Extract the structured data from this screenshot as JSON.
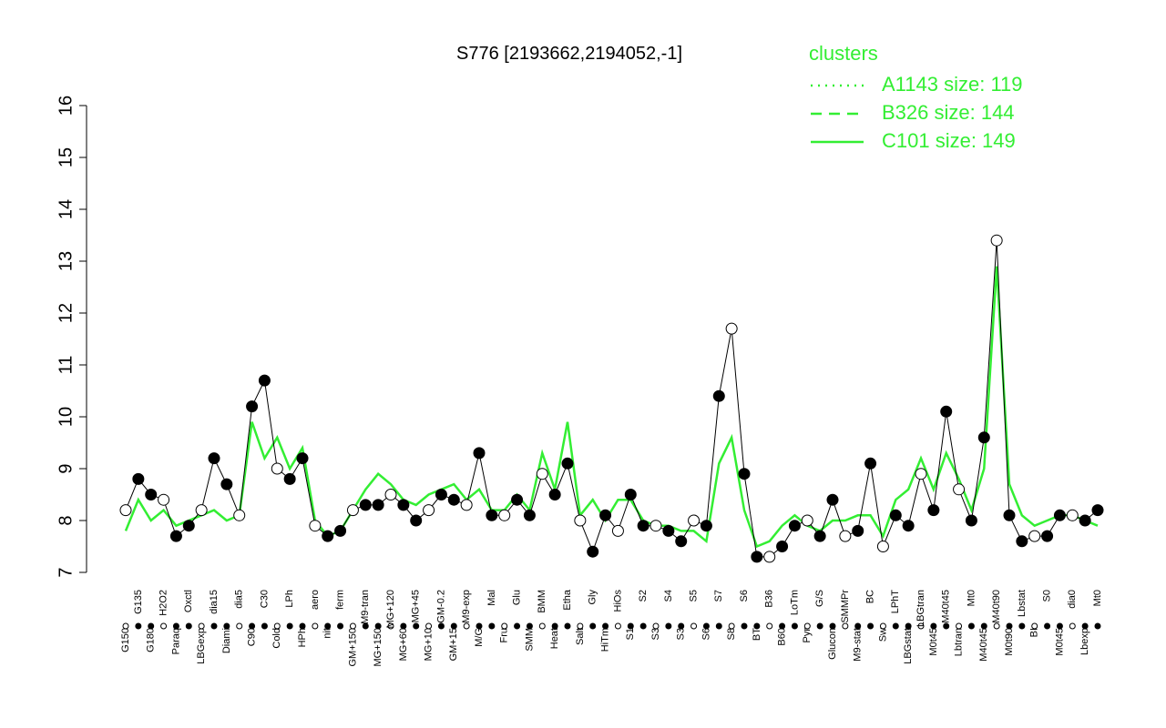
{
  "chart_data": {
    "type": "line",
    "title": "S776 [2193662,2194052,-1]",
    "legend_title": "clusters",
    "legend": "top-right",
    "categories": [
      "G150",
      "G135",
      "G180",
      "H2O2",
      "Paraq",
      "Oxctl",
      "LBGexp",
      "dia15",
      "Diami",
      "dia5",
      "C90",
      "C30",
      "Cold",
      "LPh",
      "HPh",
      "aero",
      "nit",
      "ferm",
      "GM+150",
      "M9-tran",
      "MG+150",
      "MG+120",
      "MG+60",
      "MG+45",
      "MG+10",
      "GM-0.2",
      "GM+15",
      "M9-exp",
      "M/G",
      "Mal",
      "Fru",
      "Glu",
      "SMM",
      "BMM",
      "Heat",
      "Etha",
      "Salt",
      "Gly",
      "HiTm",
      "HiOs",
      "S1",
      "S2",
      "S3",
      "S4",
      "S3",
      "S5",
      "S6",
      "S7",
      "S8",
      "S6",
      "BT",
      "B36",
      "B60",
      "LoTm",
      "Pyr",
      "G/S",
      "Glucon",
      "SMMPr",
      "M9-stat",
      "BC",
      "Sw",
      "LPhT",
      "LBGstat",
      "LBGtran",
      "M0t45",
      "M40t45",
      "Lbtran",
      "Mt0",
      "M40t45",
      "M40t90",
      "M0t90",
      "Lbstat",
      "BI",
      "S0",
      "M0t45",
      "dia0",
      "Lbexp",
      "Mt0"
    ],
    "points": [
      8.2,
      8.8,
      8.5,
      8.4,
      7.7,
      7.9,
      8.2,
      9.2,
      8.7,
      8.1,
      10.2,
      10.7,
      9.0,
      8.8,
      9.2,
      7.9,
      7.7,
      7.8,
      8.2,
      8.3,
      8.3,
      8.5,
      8.3,
      8.0,
      8.2,
      8.5,
      8.4,
      8.3,
      9.3,
      8.1,
      8.1,
      8.4,
      8.1,
      8.9,
      8.5,
      9.1,
      8.0,
      7.4,
      8.1,
      7.8,
      8.5,
      7.9,
      7.9,
      7.8,
      7.6,
      8.0,
      7.9,
      10.4,
      11.7,
      8.9,
      7.3,
      7.3,
      7.5,
      7.9,
      8.0,
      7.7,
      8.4,
      7.7,
      7.8,
      9.1,
      7.5,
      8.1,
      7.9,
      8.9,
      8.2,
      10.1,
      8.6,
      8.0,
      9.6,
      13.4,
      8.1,
      7.6,
      7.7,
      7.7,
      8.1,
      8.1,
      8.0,
      8.2
    ],
    "series": [
      {
        "name": "A1143 size: 119",
        "color": "#33ee33",
        "dash": "dotted"
      },
      {
        "name": "B326 size: 144",
        "color": "#33ee33",
        "dash": "dashed"
      },
      {
        "name": "C101 size: 149",
        "color": "#33ee33",
        "dash": "solid",
        "values": [
          7.8,
          8.4,
          8.0,
          8.2,
          7.9,
          8.0,
          8.1,
          8.2,
          8.0,
          8.1,
          9.9,
          9.2,
          9.6,
          9.0,
          9.4,
          8.0,
          7.7,
          7.8,
          8.2,
          8.6,
          8.9,
          8.7,
          8.4,
          8.3,
          8.5,
          8.6,
          8.7,
          8.4,
          8.6,
          8.2,
          8.2,
          8.5,
          8.2,
          9.3,
          8.6,
          9.9,
          8.1,
          8.4,
          8.0,
          8.4,
          8.4,
          8.0,
          7.9,
          7.9,
          7.8,
          7.8,
          7.6,
          9.1,
          9.6,
          8.2,
          7.5,
          7.6,
          7.9,
          8.1,
          7.9,
          7.8,
          8.0,
          8.0,
          8.1,
          8.1,
          7.7,
          8.4,
          8.6,
          9.2,
          8.6,
          9.3,
          8.8,
          8.2,
          9.0,
          12.9,
          8.7,
          8.1,
          7.9,
          8.0,
          8.1,
          8.1,
          8.0,
          7.9
        ]
      }
    ],
    "ylim": [
      7,
      16
    ],
    "yticks": [
      7,
      8,
      9,
      10,
      11,
      12,
      13,
      14,
      15,
      16
    ]
  }
}
